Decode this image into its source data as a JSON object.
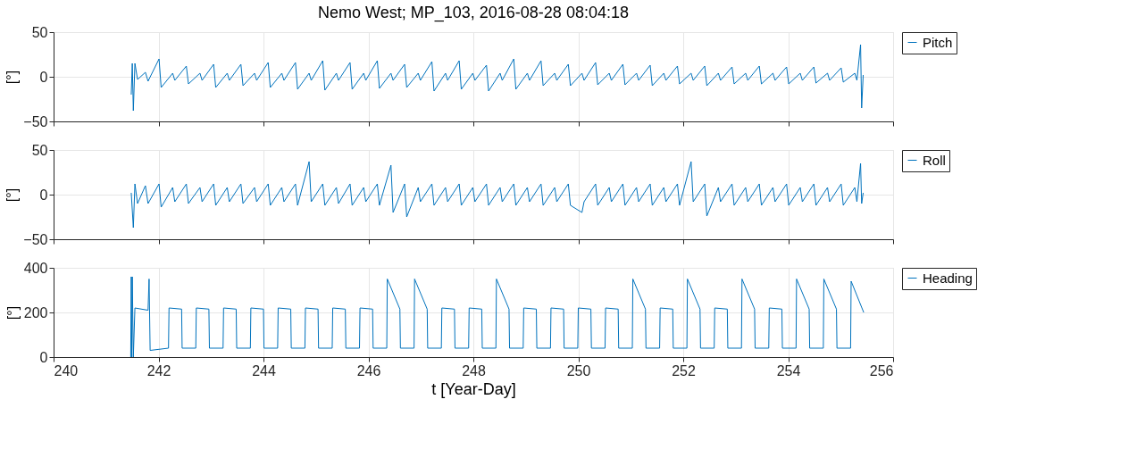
{
  "chart_data": [
    {
      "type": "line",
      "title": "Nemo West; MP_103, 2016-08-28 08:04:18",
      "ylabel": "[°]",
      "xlim": [
        240,
        256
      ],
      "xticks": [
        240,
        242,
        244,
        246,
        248,
        250,
        252,
        254,
        256
      ],
      "ylim": [
        -50,
        50
      ],
      "yticks": [
        -50,
        0,
        50
      ],
      "grid": true,
      "legend": "right",
      "tick_labels": "y",
      "x": [
        241.48,
        241.5,
        241.52,
        241.55,
        241.6,
        241.75,
        241.8,
        242.01,
        242.05,
        242.27,
        242.31,
        242.53,
        242.57,
        242.79,
        242.83,
        243.05,
        243.09,
        243.31,
        243.35,
        243.57,
        243.61,
        243.83,
        243.87,
        244.09,
        244.13,
        244.35,
        244.39,
        244.61,
        244.65,
        244.87,
        244.91,
        245.13,
        245.17,
        245.39,
        245.43,
        245.65,
        245.69,
        245.91,
        245.95,
        246.17,
        246.21,
        246.43,
        246.47,
        246.69,
        246.73,
        246.95,
        246.99,
        247.21,
        247.25,
        247.47,
        247.51,
        247.73,
        247.77,
        247.99,
        248.03,
        248.25,
        248.29,
        248.51,
        248.55,
        248.77,
        248.81,
        249.03,
        249.07,
        249.29,
        249.33,
        249.55,
        249.59,
        249.81,
        249.85,
        250.07,
        250.11,
        250.33,
        250.37,
        250.59,
        250.63,
        250.85,
        250.89,
        251.11,
        251.15,
        251.37,
        251.41,
        251.63,
        251.67,
        251.89,
        251.93,
        252.15,
        252.19,
        252.41,
        252.45,
        252.67,
        252.71,
        252.93,
        252.97,
        253.19,
        253.23,
        253.45,
        253.49,
        253.71,
        253.75,
        253.97,
        254.01,
        254.23,
        254.27,
        254.49,
        254.53,
        254.75,
        254.79,
        255.01,
        255.05,
        255.27,
        255.31,
        255.38,
        255.4,
        255.43
      ],
      "series": [
        {
          "name": "Pitch",
          "color": "#0072bd",
          "values": [
            -20,
            15,
            -38,
            15,
            -3,
            5,
            -5,
            20,
            -12,
            4,
            -4,
            12,
            -8,
            4,
            -4,
            14,
            -12,
            4,
            -4,
            14,
            -10,
            4,
            -4,
            16,
            -12,
            4,
            -4,
            16,
            -14,
            4,
            -4,
            18,
            -15,
            4,
            -4,
            16,
            -14,
            4,
            -4,
            18,
            -13,
            4,
            -4,
            14,
            -12,
            4,
            -4,
            17,
            -16,
            4,
            -4,
            18,
            -14,
            4,
            -4,
            13,
            -16,
            4,
            -4,
            20,
            -14,
            4,
            -4,
            18,
            -10,
            4,
            -4,
            14,
            -10,
            4,
            -4,
            16,
            -9,
            4,
            -4,
            14,
            -9,
            4,
            -4,
            13,
            -10,
            4,
            -4,
            12,
            -8,
            4,
            -4,
            12,
            -10,
            4,
            -4,
            11,
            -8,
            4,
            -4,
            12,
            -8,
            4,
            -4,
            11,
            -8,
            4,
            -4,
            11,
            -7,
            4,
            -4,
            10,
            -6,
            4,
            -4,
            36,
            -35,
            2
          ]
        }
      ]
    },
    {
      "type": "line",
      "ylabel": "[°]",
      "xlim": [
        240,
        256
      ],
      "xticks": [
        240,
        242,
        244,
        246,
        248,
        250,
        252,
        254,
        256
      ],
      "ylim": [
        -50,
        50
      ],
      "yticks": [
        -50,
        0,
        50
      ],
      "grid": true,
      "legend": "right",
      "tick_labels": "y",
      "x": [
        241.48,
        241.52,
        241.55,
        241.6,
        241.75,
        241.8,
        242.01,
        242.05,
        242.27,
        242.31,
        242.53,
        242.57,
        242.79,
        242.83,
        243.05,
        243.09,
        243.31,
        243.35,
        243.57,
        243.61,
        243.83,
        243.87,
        244.09,
        244.13,
        244.35,
        244.39,
        244.61,
        244.65,
        244.87,
        244.91,
        245.13,
        245.17,
        245.39,
        245.43,
        245.65,
        245.69,
        245.91,
        245.95,
        246.17,
        246.21,
        246.43,
        246.47,
        246.69,
        246.73,
        246.95,
        246.99,
        247.21,
        247.25,
        247.47,
        247.51,
        247.73,
        247.77,
        247.99,
        248.03,
        248.25,
        248.29,
        248.51,
        248.55,
        248.77,
        248.81,
        249.03,
        249.07,
        249.29,
        249.33,
        249.55,
        249.59,
        249.81,
        249.85,
        250.07,
        250.11,
        250.33,
        250.37,
        250.59,
        250.63,
        250.85,
        250.89,
        251.11,
        251.15,
        251.37,
        251.41,
        251.63,
        251.67,
        251.89,
        251.93,
        252.15,
        252.19,
        252.41,
        252.45,
        252.67,
        252.71,
        252.93,
        252.97,
        253.19,
        253.23,
        253.45,
        253.49,
        253.71,
        253.75,
        253.97,
        254.01,
        254.23,
        254.27,
        254.49,
        254.53,
        254.75,
        254.79,
        255.01,
        255.05,
        255.27,
        255.31,
        255.38,
        255.4,
        255.43
      ],
      "series": [
        {
          "name": "Roll",
          "color": "#0072bd",
          "values": [
            2,
            -37,
            12,
            -10,
            10,
            -10,
            12,
            -14,
            8,
            -8,
            12,
            -10,
            8,
            -8,
            12,
            -12,
            8,
            -8,
            12,
            -10,
            8,
            -8,
            12,
            -12,
            8,
            -8,
            12,
            -12,
            37,
            -8,
            12,
            -12,
            8,
            -10,
            12,
            -12,
            8,
            -8,
            12,
            -12,
            33,
            -20,
            12,
            -25,
            8,
            -8,
            12,
            -12,
            8,
            -8,
            12,
            -12,
            8,
            -8,
            12,
            -12,
            8,
            -8,
            12,
            -12,
            8,
            -8,
            12,
            -12,
            8,
            -8,
            12,
            -12,
            -20,
            -8,
            12,
            -12,
            8,
            -8,
            12,
            -12,
            8,
            -8,
            12,
            -12,
            8,
            -8,
            12,
            -12,
            37,
            -8,
            12,
            -24,
            8,
            -8,
            12,
            -12,
            8,
            -8,
            12,
            -12,
            8,
            -8,
            12,
            -12,
            8,
            -8,
            12,
            -12,
            8,
            -8,
            12,
            -12,
            8,
            -8,
            35,
            -10,
            2
          ]
        }
      ]
    },
    {
      "type": "line",
      "ylabel": "[°]",
      "xlabel": "t  [Year-Day]",
      "xlim": [
        240,
        256
      ],
      "xticks": [
        240,
        242,
        244,
        246,
        248,
        250,
        252,
        254,
        256
      ],
      "ylim": [
        0,
        400
      ],
      "yticks": [
        0,
        200,
        400
      ],
      "grid": true,
      "legend": "right",
      "x": [
        241.47,
        241.48,
        241.49,
        241.5,
        241.52,
        241.55,
        241.8,
        241.82,
        241.84,
        242.19,
        242.2,
        242.44,
        242.45,
        242.71,
        242.72,
        242.96,
        242.97,
        243.23,
        243.24,
        243.48,
        243.49,
        243.75,
        243.76,
        244.0,
        244.01,
        244.27,
        244.28,
        244.52,
        244.53,
        244.79,
        244.8,
        245.04,
        245.05,
        245.31,
        245.32,
        245.56,
        245.57,
        245.83,
        245.84,
        246.08,
        246.09,
        246.35,
        246.36,
        246.6,
        246.61,
        246.87,
        246.88,
        247.12,
        247.13,
        247.39,
        247.4,
        247.64,
        247.65,
        247.91,
        247.92,
        248.16,
        248.17,
        248.43,
        248.44,
        248.68,
        248.69,
        248.95,
        248.96,
        249.2,
        249.21,
        249.47,
        249.48,
        249.72,
        249.73,
        249.99,
        250.0,
        250.24,
        250.25,
        250.51,
        250.52,
        250.76,
        250.77,
        251.03,
        251.04,
        251.28,
        251.29,
        251.55,
        251.56,
        251.8,
        251.81,
        252.07,
        252.08,
        252.32,
        252.33,
        252.59,
        252.6,
        252.84,
        252.85,
        253.11,
        253.12,
        253.36,
        253.37,
        253.63,
        253.64,
        253.88,
        253.89,
        254.15,
        254.16,
        254.4,
        254.41,
        254.67,
        254.68,
        254.92,
        254.93,
        255.19,
        255.2,
        255.44
      ],
      "series": [
        {
          "name": "Heading",
          "color": "#0072bd",
          "values": [
            0,
            360,
            0,
            360,
            0,
            220,
            210,
            350,
            30,
            40,
            220,
            215,
            40,
            40,
            220,
            215,
            40,
            40,
            220,
            215,
            40,
            40,
            220,
            215,
            40,
            40,
            220,
            215,
            40,
            40,
            220,
            215,
            40,
            40,
            220,
            215,
            40,
            40,
            220,
            215,
            40,
            40,
            350,
            215,
            40,
            40,
            350,
            215,
            40,
            40,
            220,
            215,
            40,
            40,
            220,
            215,
            40,
            40,
            350,
            215,
            40,
            40,
            220,
            215,
            40,
            40,
            220,
            215,
            40,
            40,
            220,
            215,
            40,
            40,
            220,
            215,
            40,
            40,
            350,
            215,
            40,
            40,
            220,
            215,
            40,
            40,
            350,
            215,
            40,
            40,
            220,
            215,
            40,
            40,
            350,
            215,
            40,
            40,
            220,
            215,
            40,
            40,
            350,
            215,
            40,
            40,
            350,
            215,
            40,
            40,
            340,
            200
          ]
        }
      ]
    }
  ]
}
